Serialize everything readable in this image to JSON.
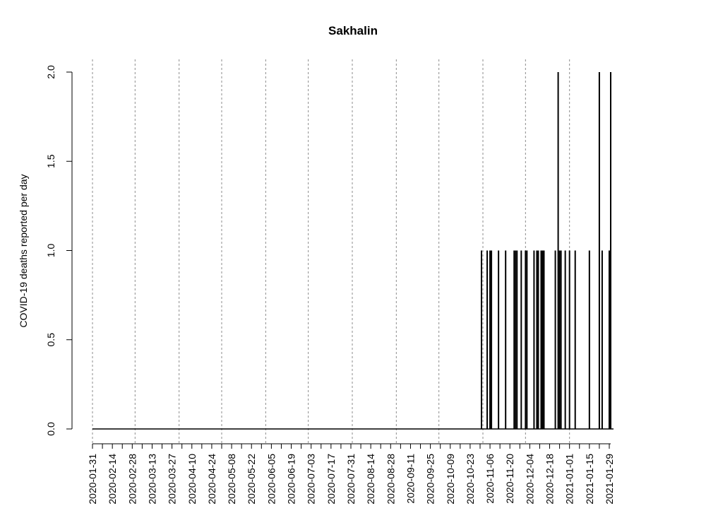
{
  "chart_data": {
    "type": "bar",
    "title": "Sakhalin",
    "xlabel": "",
    "ylabel": "COVID-19 deaths reported per day",
    "x_range": [
      "2020-01-31",
      "2021-01-30"
    ],
    "ylim": [
      0,
      2
    ],
    "y_ticks": [
      "0.0",
      "0.5",
      "1.0",
      "1.5",
      "2.0"
    ],
    "x_tick_labels": [
      "2020-01-31",
      "2020-02-14",
      "2020-02-28",
      "2020-03-13",
      "2020-03-27",
      "2020-04-10",
      "2020-04-24",
      "2020-05-08",
      "2020-05-22",
      "2020-06-05",
      "2020-06-19",
      "2020-07-03",
      "2020-07-17",
      "2020-07-31",
      "2020-08-14",
      "2020-08-28",
      "2020-09-11",
      "2020-09-25",
      "2020-10-09",
      "2020-10-23",
      "2020-11-06",
      "2020-11-20",
      "2020-12-04",
      "2020-12-18",
      "2021-01-01",
      "2021-01-15",
      "2021-01-29"
    ],
    "minor_ticks": "weekly",
    "gridlines": [
      "2020-01-31",
      "2020-03-01",
      "2020-04-01",
      "2020-05-01",
      "2020-06-01",
      "2020-07-01",
      "2020-08-01",
      "2020-09-01",
      "2020-10-01",
      "2020-11-01",
      "2020-12-01",
      "2021-01-01"
    ],
    "grid": "vertical dotted monthly",
    "series": [
      {
        "values": [
          [
            "2020-10-31",
            1
          ],
          [
            "2020-11-04",
            1
          ],
          [
            "2020-11-06",
            1
          ],
          [
            "2020-11-07",
            1
          ],
          [
            "2020-11-12",
            1
          ],
          [
            "2020-11-17",
            1
          ],
          [
            "2020-11-23",
            1
          ],
          [
            "2020-11-24",
            1
          ],
          [
            "2020-11-25",
            1
          ],
          [
            "2020-11-28",
            1
          ],
          [
            "2020-12-01",
            1
          ],
          [
            "2020-12-02",
            1
          ],
          [
            "2020-12-07",
            1
          ],
          [
            "2020-12-09",
            1
          ],
          [
            "2020-12-10",
            1
          ],
          [
            "2020-12-12",
            1
          ],
          [
            "2020-12-13",
            1
          ],
          [
            "2020-12-14",
            1
          ],
          [
            "2020-12-22",
            1
          ],
          [
            "2020-12-24",
            2
          ],
          [
            "2020-12-25",
            1
          ],
          [
            "2020-12-26",
            1
          ],
          [
            "2020-12-29",
            1
          ],
          [
            "2021-01-01",
            1
          ],
          [
            "2021-01-05",
            1
          ],
          [
            "2021-01-15",
            1
          ],
          [
            "2021-01-22",
            2
          ],
          [
            "2021-01-24",
            1
          ],
          [
            "2021-01-29",
            1
          ],
          [
            "2021-01-30",
            2
          ]
        ]
      }
    ]
  }
}
